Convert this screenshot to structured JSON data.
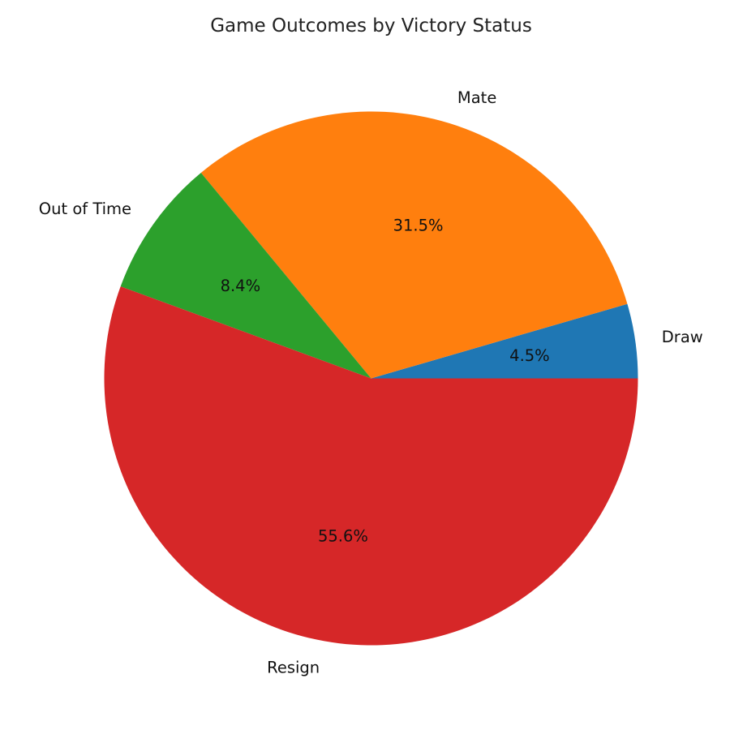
{
  "chart_data": {
    "type": "pie",
    "title": "Game Outcomes by Victory Status",
    "slices": [
      {
        "label": "Draw",
        "value": 4.5,
        "pct_label": "4.5%",
        "color": "#1f77b4"
      },
      {
        "label": "Mate",
        "value": 31.5,
        "pct_label": "31.5%",
        "color": "#ff7f0e"
      },
      {
        "label": "Out of Time",
        "value": 8.4,
        "pct_label": "8.4%",
        "color": "#2ca02c"
      },
      {
        "label": "Resign",
        "value": 55.6,
        "pct_label": "55.6%",
        "color": "#d62728"
      }
    ],
    "start_angle_deg": 0,
    "direction": "counterclockwise"
  }
}
